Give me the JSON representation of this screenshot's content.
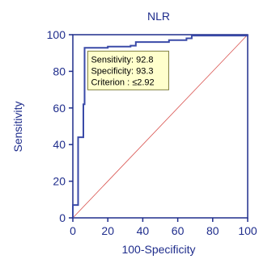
{
  "colors": {
    "axis": "#1f2d8c",
    "curve": "#3a4aa8",
    "diagonal": "#d9534f",
    "annotation_bg": "#ffffcc",
    "annotation_border": "#808040",
    "text": "#1f2d8c"
  },
  "chart_data": {
    "type": "line",
    "title": "NLR",
    "xlabel": "100-Specificity",
    "ylabel": "Sensitivity",
    "xlim": [
      0,
      100
    ],
    "ylim": [
      0,
      100
    ],
    "x_ticks": [
      0,
      20,
      40,
      60,
      80,
      100
    ],
    "y_ticks": [
      0,
      20,
      40,
      60,
      80,
      100
    ],
    "grid": false,
    "series": [
      {
        "points": [
          [
            0,
            0
          ],
          [
            0,
            7
          ],
          [
            3,
            7
          ],
          [
            3,
            44
          ],
          [
            6,
            44
          ],
          [
            6,
            62
          ],
          [
            6.7,
            62
          ],
          [
            6.7,
            92.8
          ],
          [
            20,
            92.8
          ],
          [
            20,
            93.5
          ],
          [
            33,
            93.5
          ],
          [
            33,
            94
          ],
          [
            36,
            94
          ],
          [
            36,
            96
          ],
          [
            55,
            96
          ],
          [
            55,
            97
          ],
          [
            65,
            97
          ],
          [
            65,
            98
          ],
          [
            68,
            98
          ],
          [
            68,
            99.5
          ],
          [
            100,
            99.5
          ],
          [
            100,
            100
          ]
        ]
      }
    ],
    "reference_line": [
      [
        0,
        0
      ],
      [
        100,
        100
      ]
    ],
    "annotation": {
      "lines": [
        "Sensitivity: 92.8",
        "Specificity: 93.3",
        "Criterion : ≤2.92"
      ],
      "anchor": [
        6.7,
        92.8
      ]
    }
  }
}
